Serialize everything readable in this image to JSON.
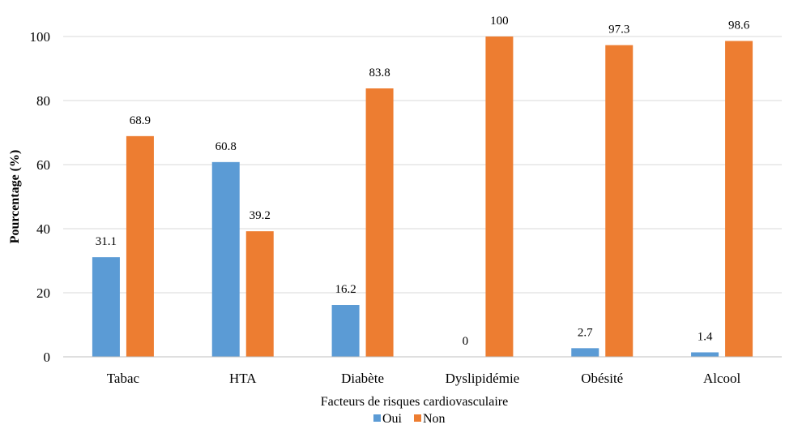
{
  "chart_data": {
    "type": "bar",
    "title": "",
    "xlabel": "Facteurs de risques cardiovasculaire",
    "ylabel": "Pourcentage (%)",
    "ylim": [
      0,
      100
    ],
    "yticks": [
      0,
      20,
      40,
      60,
      80,
      100
    ],
    "categories": [
      "Tabac",
      "HTA",
      "Diabète",
      "Dyslipidémie",
      "Obésité",
      "Alcool"
    ],
    "series": [
      {
        "name": "Oui",
        "color": "#5b9bd5",
        "values": [
          31.1,
          60.8,
          16.2,
          0,
          2.7,
          1.4
        ],
        "labels": [
          "31.1",
          "60.8",
          "16.2",
          "0",
          "2.7",
          "1.4"
        ]
      },
      {
        "name": "Non",
        "color": "#ed7d31",
        "values": [
          68.9,
          39.2,
          83.8,
          100,
          97.3,
          98.6
        ],
        "labels": [
          "68.9",
          "39.2",
          "83.8",
          "100",
          "97.3",
          "98.6"
        ]
      }
    ],
    "grid": true,
    "legend_position": "bottom"
  }
}
